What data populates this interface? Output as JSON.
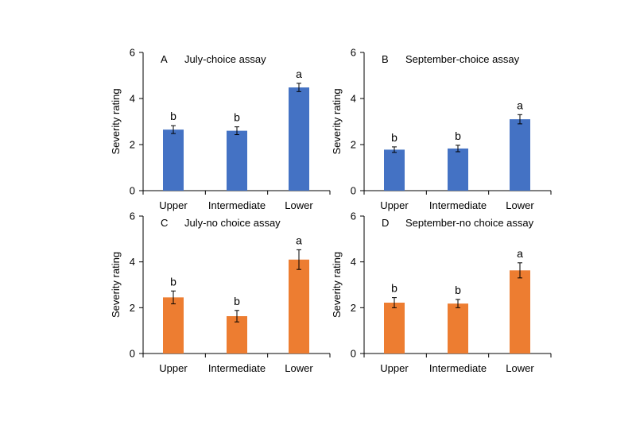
{
  "chart_data": [
    {
      "panel_letter": "A",
      "title": "July-choice assay",
      "type": "bar",
      "categories": [
        "Upper",
        "Intermediate",
        "Lower"
      ],
      "values": [
        2.65,
        2.6,
        4.48
      ],
      "errors": [
        0.17,
        0.17,
        0.18
      ],
      "significance": [
        "b",
        "b",
        "a"
      ],
      "color": "#4472c4",
      "xlabel": "",
      "ylabel": "Severity rating",
      "ylim": [
        0,
        6
      ],
      "yticks": [
        0,
        2,
        4,
        6
      ]
    },
    {
      "panel_letter": "B",
      "title": "September-choice assay",
      "type": "bar",
      "categories": [
        "Upper",
        "Intermediate",
        "Lower"
      ],
      "values": [
        1.78,
        1.83,
        3.1
      ],
      "errors": [
        0.12,
        0.14,
        0.2
      ],
      "significance": [
        "b",
        "b",
        "a"
      ],
      "color": "#4472c4",
      "xlabel": "",
      "ylabel": "Severity rating",
      "ylim": [
        0,
        6
      ],
      "yticks": [
        0,
        2,
        4,
        6
      ]
    },
    {
      "panel_letter": "C",
      "title": "July-no choice assay",
      "type": "bar",
      "categories": [
        "Upper",
        "Intermediate",
        "Lower"
      ],
      "values": [
        2.45,
        1.63,
        4.1
      ],
      "errors": [
        0.28,
        0.25,
        0.43
      ],
      "significance": [
        "b",
        "b",
        "a"
      ],
      "color": "#ed7d31",
      "xlabel": "",
      "ylabel": "Severity rating",
      "ylim": [
        0,
        6
      ],
      "yticks": [
        0,
        2,
        4,
        6
      ]
    },
    {
      "panel_letter": "D",
      "title": "September-no choice assay",
      "type": "bar",
      "categories": [
        "Upper",
        "Intermediate",
        "Lower"
      ],
      "values": [
        2.22,
        2.18,
        3.63
      ],
      "errors": [
        0.22,
        0.18,
        0.33
      ],
      "significance": [
        "b",
        "b",
        "a"
      ],
      "color": "#ed7d31",
      "xlabel": "",
      "ylabel": "Severity rating",
      "ylim": [
        0,
        6
      ],
      "yticks": [
        0,
        2,
        4,
        6
      ]
    }
  ]
}
